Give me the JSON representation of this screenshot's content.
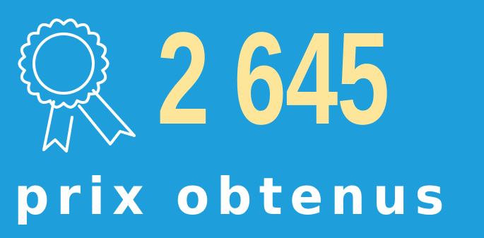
{
  "headline": {
    "number": "2 645",
    "caption": "prix obtenus"
  },
  "icon": {
    "name": "award-rosette-icon"
  },
  "colors": {
    "background": "#1e9fdc",
    "number": "#fde59a",
    "caption": "#ffffff",
    "icon_stroke": "#ffffff"
  }
}
